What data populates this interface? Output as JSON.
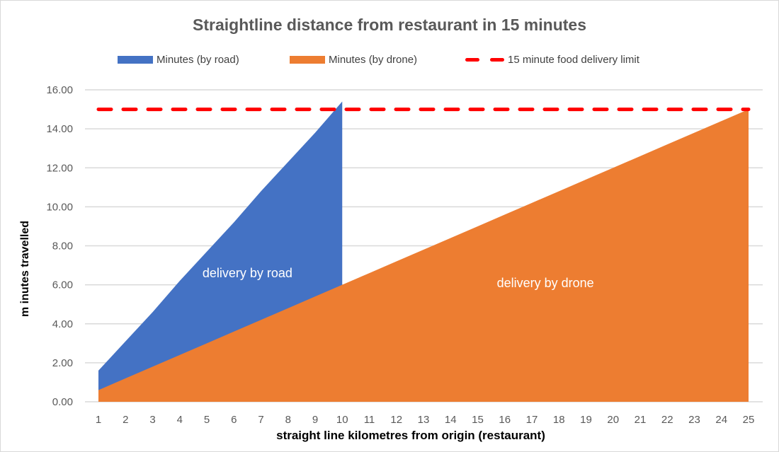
{
  "chart_data": {
    "type": "area",
    "title": "Straightline distance from restaurant in 15 minutes",
    "xlabel": "straight line kilometres from origin (restaurant)",
    "ylabel": "m inutes travelled",
    "x": [
      1,
      2,
      3,
      4,
      5,
      6,
      7,
      8,
      9,
      10,
      11,
      12,
      13,
      14,
      15,
      16,
      17,
      18,
      19,
      20,
      21,
      22,
      23,
      24,
      25
    ],
    "ylim": [
      0,
      16
    ],
    "yticks": [
      "0.00",
      "2.00",
      "4.00",
      "6.00",
      "8.00",
      "10.00",
      "12.00",
      "14.00",
      "16.00"
    ],
    "grid": true,
    "legend_position": "top",
    "series": [
      {
        "name": "Minutes  (by road)",
        "type": "area",
        "color": "#4472c4",
        "x": [
          1,
          2,
          3,
          4,
          5,
          6,
          7,
          8,
          9,
          10
        ],
        "values": [
          1.6,
          3.1,
          4.6,
          6.2,
          7.7,
          9.2,
          10.8,
          12.3,
          13.8,
          15.4
        ]
      },
      {
        "name": "Minutes  (by drone)",
        "type": "area",
        "color": "#ed7d31",
        "x": [
          1,
          2,
          3,
          4,
          5,
          6,
          7,
          8,
          9,
          10,
          11,
          12,
          13,
          14,
          15,
          16,
          17,
          18,
          19,
          20,
          21,
          22,
          23,
          24,
          25
        ],
        "values": [
          0.6,
          1.2,
          1.8,
          2.4,
          3.0,
          3.6,
          4.2,
          4.8,
          5.4,
          6.0,
          6.6,
          7.2,
          7.8,
          8.4,
          9.0,
          9.6,
          10.2,
          10.8,
          11.4,
          12.0,
          12.6,
          13.2,
          13.8,
          14.4,
          15.0
        ]
      },
      {
        "name": "15 minute food delivery limit",
        "type": "line",
        "style": "dashed",
        "color": "#ff0000",
        "x": [
          1,
          25
        ],
        "values": [
          15,
          15
        ]
      }
    ],
    "annotations": [
      {
        "text": "delivery by road",
        "x": 6.5,
        "y": 6.6
      },
      {
        "text": "delivery by drone",
        "x": 17.5,
        "y": 6.1
      }
    ]
  },
  "labels": {
    "title": "Straightline distance from restaurant in 15 minutes",
    "xlabel": "straight line kilometres from origin (restaurant)",
    "ylabel": "m inutes travelled",
    "legend": [
      "Minutes  (by road)",
      "Minutes  (by drone)",
      "15 minute food delivery limit"
    ],
    "road_annotation": "delivery by road",
    "drone_annotation": "delivery by drone"
  }
}
